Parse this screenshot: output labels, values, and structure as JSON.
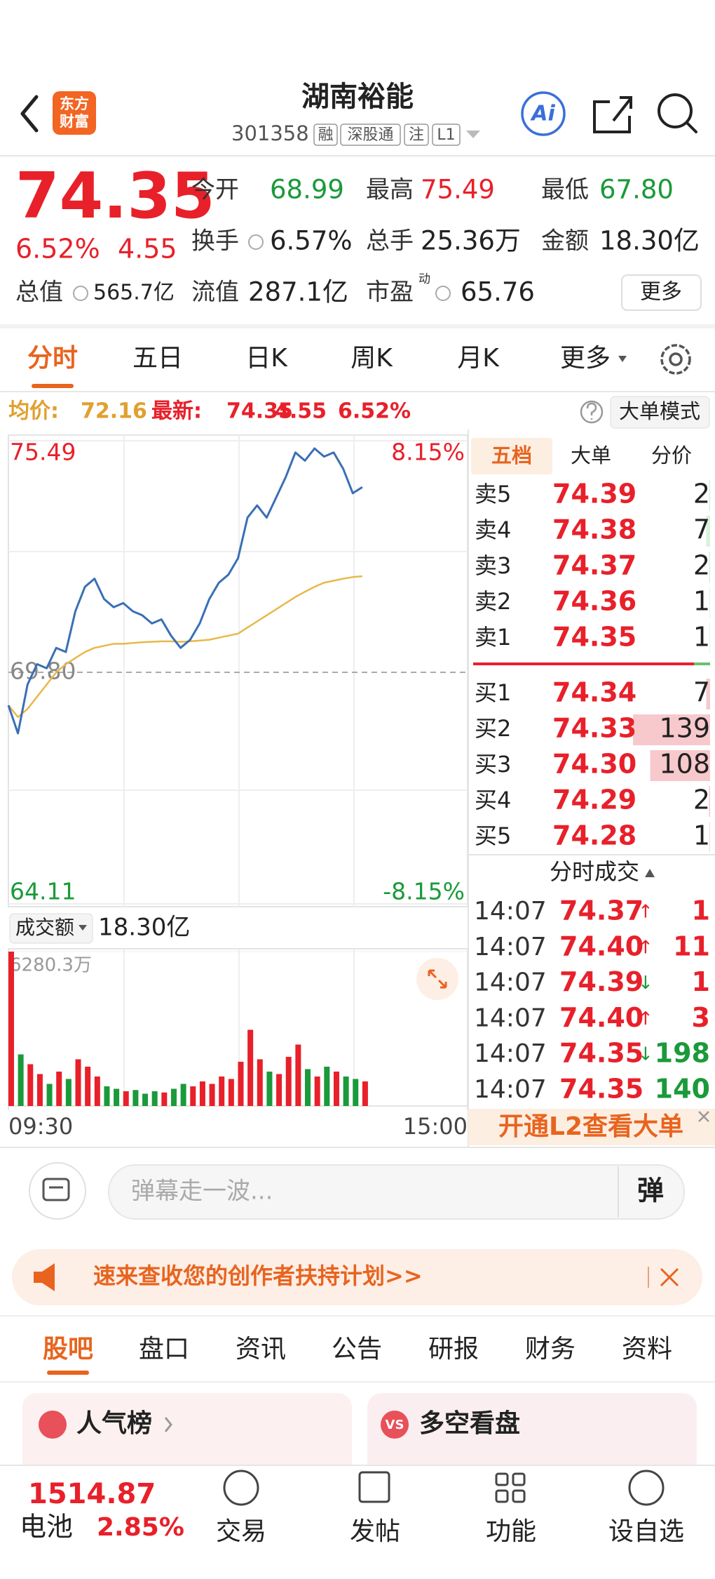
{
  "header": {
    "logo": [
      "东方",
      "财富"
    ],
    "title": "湖南裕能",
    "code": "301358",
    "tags": [
      "融",
      "深股通",
      "注",
      "L1"
    ],
    "ai": "Ai"
  },
  "quote": {
    "price": "74.35",
    "change_pct": "6.52%",
    "change": "4.55",
    "fields": [
      {
        "label": "今开",
        "value": "68.99",
        "color": "#1a9a3a"
      },
      {
        "label": "最高",
        "value": "75.49",
        "color": "#e8202a"
      },
      {
        "label": "最低",
        "value": "67.80",
        "color": "#1a9a3a"
      },
      {
        "label": "换手",
        "value": "6.57%",
        "color": "#222"
      },
      {
        "label": "总手",
        "value": "25.36万",
        "color": "#222"
      },
      {
        "label": "金额",
        "value": "18.30亿",
        "color": "#222"
      },
      {
        "label": "总值",
        "value": "565.7亿",
        "color": "#222"
      },
      {
        "label": "流值",
        "value": "287.1亿",
        "color": "#222"
      },
      {
        "label": "市盈",
        "sup": "动",
        "value": "65.76",
        "color": "#222"
      }
    ],
    "more": "更多"
  },
  "tabs": [
    "分时",
    "五日",
    "日K",
    "周K",
    "月K",
    "更多"
  ],
  "info_bar": {
    "avg_value": "72.16",
    "last_value": "74.35",
    "change": "4.55",
    "change_pct": "6.52%",
    "mode": "大单模式"
  },
  "chart_data": [
    {
      "type": "line",
      "x": [
        0,
        5,
        10,
        15,
        20,
        25,
        30,
        35,
        40,
        45,
        50,
        55,
        60,
        65,
        70,
        75,
        80,
        85,
        90,
        95,
        100,
        105,
        110,
        115,
        120,
        125,
        130,
        135,
        140,
        145,
        150,
        155,
        160,
        165,
        170,
        175,
        180,
        185
      ],
      "xlim": [
        0,
        240
      ],
      "xticks": [
        {
          "value": 0,
          "label": "09:30"
        },
        {
          "value": 240,
          "label": "15:00"
        }
      ],
      "ylim": [
        64.11,
        75.49
      ],
      "yticks": [
        75.49,
        {
          "value": 69.8,
          "label": "69.80"
        },
        64.11
      ],
      "y2lim": [
        -8.15,
        8.15
      ],
      "y2ticks": [
        {
          "value": 8.15,
          "label": "8.15%"
        },
        {
          "value": -8.15,
          "label": "-8.15%"
        }
      ],
      "series": [
        {
          "name": "最新:",
          "color": "#3a6fb5",
          "values": [
            68.99,
            68.3,
            69.5,
            70.0,
            69.9,
            70.4,
            70.3,
            71.3,
            71.9,
            72.1,
            71.6,
            71.4,
            71.5,
            71.3,
            71.2,
            71.0,
            71.1,
            70.7,
            70.4,
            70.6,
            71.0,
            71.6,
            72.0,
            72.2,
            72.6,
            73.6,
            73.9,
            73.6,
            74.1,
            74.6,
            75.2,
            75.0,
            75.3,
            75.1,
            75.2,
            74.8,
            74.2,
            74.35
          ]
        },
        {
          "name": "均价:",
          "color": "#e8b84a",
          "values": [
            68.99,
            68.7,
            68.9,
            69.2,
            69.5,
            69.8,
            70.0,
            70.15,
            70.3,
            70.4,
            70.45,
            70.5,
            70.5,
            70.52,
            70.54,
            70.55,
            70.56,
            70.56,
            70.55,
            70.56,
            70.58,
            70.6,
            70.65,
            70.7,
            70.75,
            70.9,
            71.05,
            71.2,
            71.35,
            71.5,
            71.65,
            71.78,
            71.9,
            72.0,
            72.05,
            72.1,
            72.14,
            72.16
          ]
        }
      ]
    },
    {
      "type": "bar",
      "x": [
        0,
        5,
        10,
        15,
        20,
        25,
        30,
        35,
        40,
        45,
        50,
        55,
        60,
        65,
        70,
        75,
        80,
        85,
        90,
        95,
        100,
        105,
        110,
        115,
        120,
        125,
        130,
        135,
        140,
        145,
        150,
        155,
        160,
        165,
        170,
        175,
        180,
        185
      ],
      "xlim": [
        0,
        240
      ],
      "ylim": [
        0,
        6280.3
      ],
      "yticks": [
        {
          "value": 6280.3,
          "label": "6280.3万"
        }
      ],
      "colors": {
        "up": "#e8202a",
        "down": "#1a9a3a"
      },
      "values": [
        6280.3,
        2100,
        1700,
        1300,
        900,
        1400,
        1100,
        1900,
        1600,
        1200,
        800,
        700,
        600,
        650,
        500,
        600,
        550,
        700,
        900,
        800,
        1000,
        900,
        1200,
        1100,
        1800,
        3100,
        1900,
        1400,
        1300,
        2000,
        2500,
        1500,
        1200,
        1600,
        1400,
        1200,
        1100,
        1000
      ]
    }
  ],
  "volume_header": {
    "label": "成交额",
    "value": "18.30亿"
  },
  "order_book": {
    "tabs": [
      "五档",
      "大单",
      "分价"
    ],
    "asks": [
      {
        "label": "卖5",
        "price": "74.39",
        "volume": 2
      },
      {
        "label": "卖4",
        "price": "74.38",
        "volume": 7
      },
      {
        "label": "卖3",
        "price": "74.37",
        "volume": 2
      },
      {
        "label": "卖2",
        "price": "74.36",
        "volume": 1
      },
      {
        "label": "卖1",
        "price": "74.35",
        "volume": 1
      }
    ],
    "bids": [
      {
        "label": "买1",
        "price": "74.34",
        "volume": 7
      },
      {
        "label": "买2",
        "price": "74.33",
        "volume": 139
      },
      {
        "label": "买3",
        "price": "74.30",
        "volume": 108
      },
      {
        "label": "买4",
        "price": "74.29",
        "volume": 2
      },
      {
        "label": "买5",
        "price": "74.28",
        "volume": 1
      }
    ],
    "trades_title": "分时成交",
    "trades": [
      {
        "time": "14:07",
        "price": "74.37",
        "arrow": "↑",
        "arrow_color": "#e8202a",
        "volume": "1",
        "volume_color": "#e8202a"
      },
      {
        "time": "14:07",
        "price": "74.40",
        "arrow": "↑",
        "arrow_color": "#e8202a",
        "volume": "11",
        "volume_color": "#e8202a"
      },
      {
        "time": "14:07",
        "price": "74.39",
        "arrow": "↓",
        "arrow_color": "#1a9a3a",
        "volume": "1",
        "volume_color": "#e8202a"
      },
      {
        "time": "14:07",
        "price": "74.40",
        "arrow": "↑",
        "arrow_color": "#e8202a",
        "volume": "3",
        "volume_color": "#e8202a"
      },
      {
        "time": "14:07",
        "price": "74.35",
        "arrow": "↓",
        "arrow_color": "#1a9a3a",
        "volume": "198",
        "volume_color": "#1a9a3a"
      },
      {
        "time": "14:07",
        "price": "74.35",
        "volume": "140",
        "volume_color": "#1a9a3a"
      }
    ],
    "banner": "开通L2查看大单"
  },
  "comment": {
    "placeholder": "弹幕走一波...",
    "button": "弹"
  },
  "promo": "速来查收您的创作者扶持计划>>",
  "sub_tabs": [
    "股吧",
    "盘口",
    "资讯",
    "公告",
    "研报",
    "财务",
    "资料"
  ],
  "cards": [
    {
      "title": "人气榜"
    },
    {
      "icon": "VS",
      "title": "多空看盘"
    }
  ],
  "bottom_nav": {
    "index_value": "1514.87",
    "index_name": "电池",
    "index_pct": "2.85%",
    "items": [
      "交易",
      "发帖",
      "功能",
      "设自选"
    ]
  }
}
